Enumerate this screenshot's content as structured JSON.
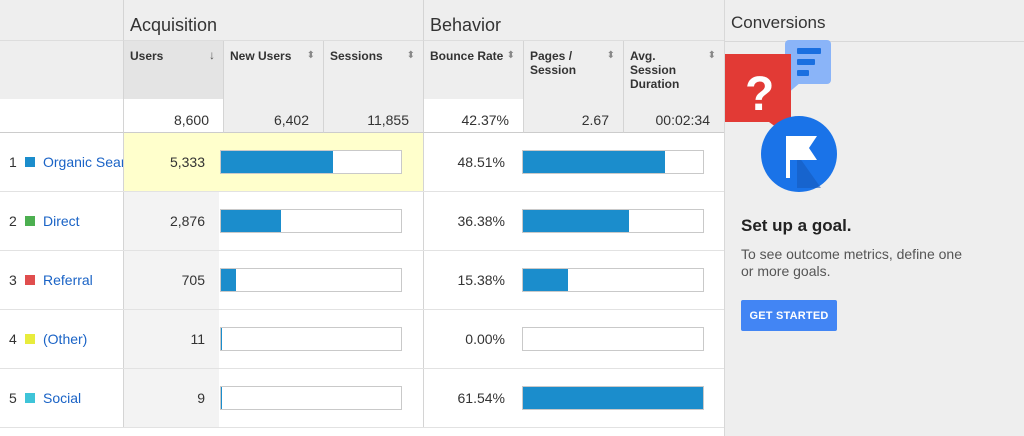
{
  "groups": {
    "acquisition": "Acquisition",
    "behavior": "Behavior",
    "conversions": "Conversions"
  },
  "columns": {
    "users": "Users",
    "new_users": "New Users",
    "sessions": "Sessions",
    "bounce_rate": "Bounce Rate",
    "pages_session_1": "Pages /",
    "pages_session_2": "Session",
    "avg_duration_1": "Avg.",
    "avg_duration_2": "Session",
    "avg_duration_3": "Duration",
    "sort_active_glyph": "↓",
    "sort_glyph": "⬍"
  },
  "totals": {
    "users": "8,600",
    "new_users": "6,402",
    "sessions": "11,855",
    "bounce_rate": "42.37%",
    "pages_session": "2.67",
    "avg_duration": "00:02:34"
  },
  "rows": [
    {
      "index": "1",
      "channel": "Organic Search",
      "color": "#1b8dcc",
      "users": "5,333",
      "users_share": 0.62,
      "bounce_rate": "48.51%",
      "bounce_share": 0.79
    },
    {
      "index": "2",
      "channel": "Direct",
      "color": "#4caf50",
      "users": "2,876",
      "users_share": 0.334,
      "bounce_rate": "36.38%",
      "bounce_share": 0.59
    },
    {
      "index": "3",
      "channel": "Referral",
      "color": "#e04e4e",
      "users": "705",
      "users_share": 0.082,
      "bounce_rate": "15.38%",
      "bounce_share": 0.25
    },
    {
      "index": "4",
      "channel": "(Other)",
      "color": "#e8ec3c",
      "users": "11",
      "users_share": 0.003,
      "bounce_rate": "0.00%",
      "bounce_share": 0.0
    },
    {
      "index": "5",
      "channel": "Social",
      "color": "#3fc4d8",
      "users": "9",
      "users_share": 0.002,
      "bounce_rate": "61.54%",
      "bounce_share": 1.0
    }
  ],
  "goal": {
    "title": "Set up a goal.",
    "description": "To see outcome metrics, define one or more goals.",
    "button": "GET STARTED"
  },
  "colors": {
    "bar": "#1b8dcc",
    "link": "#1a63c6",
    "highlight": "#ffffcc",
    "button": "#4285f4"
  }
}
